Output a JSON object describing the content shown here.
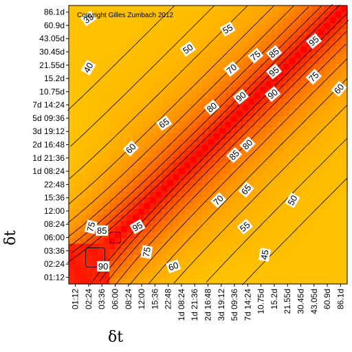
{
  "chart_data": {
    "type": "heatmap",
    "copyright": "Copyright Gilles Zumbach 2012",
    "xlabel": "δt",
    "ylabel": "δt",
    "tick_labels": [
      "01:12",
      "02:24",
      "03:36",
      "06:00",
      "08:24",
      "12:00",
      "15:36",
      "22:48",
      "1d 08:24",
      "1d 21:36",
      "2d 16:48",
      "3d 19:12",
      "5d 09:36",
      "7d 14:24",
      "10.75d",
      "15.2d",
      "21.55d",
      "30.45d",
      "43.05d",
      "60.9d",
      "86.1d"
    ],
    "contour_labels": [
      {
        "value": "35",
        "i": 1.0,
        "j": 19.5,
        "angle": -35
      },
      {
        "value": "55",
        "i": 11.5,
        "j": 18.7,
        "angle": -30
      },
      {
        "value": "50",
        "i": 8.5,
        "j": 17.2,
        "angle": -35
      },
      {
        "value": "40",
        "i": 1.0,
        "j": 15.8,
        "angle": -60
      },
      {
        "value": "75",
        "i": 13.6,
        "j": 16.7,
        "angle": -40
      },
      {
        "value": "85",
        "i": 15.0,
        "j": 16.9,
        "angle": -40
      },
      {
        "value": "95",
        "i": 18.0,
        "j": 17.8,
        "angle": -40
      },
      {
        "value": "70",
        "i": 11.8,
        "j": 15.7,
        "angle": -40
      },
      {
        "value": "95",
        "i": 15.0,
        "j": 15.5,
        "angle": -40
      },
      {
        "value": "75",
        "i": 18.0,
        "j": 15.1,
        "angle": -45
      },
      {
        "value": "60",
        "i": 19.9,
        "j": 14.2,
        "angle": -50
      },
      {
        "value": "90",
        "i": 12.5,
        "j": 13.6,
        "angle": -40
      },
      {
        "value": "90",
        "i": 14.9,
        "j": 13.8,
        "angle": -40
      },
      {
        "value": "80",
        "i": 10.3,
        "j": 12.8,
        "angle": -40
      },
      {
        "value": "65",
        "i": 6.7,
        "j": 11.6,
        "angle": -35
      },
      {
        "value": "60",
        "i": 4.2,
        "j": 9.7,
        "angle": -45
      },
      {
        "value": "85",
        "i": 12.0,
        "j": 9.2,
        "angle": -45
      },
      {
        "value": "80",
        "i": 13.0,
        "j": 10.0,
        "angle": -45
      },
      {
        "value": "70",
        "i": 10.8,
        "j": 5.8,
        "angle": -45
      },
      {
        "value": "65",
        "i": 12.9,
        "j": 6.6,
        "angle": -50
      },
      {
        "value": "50",
        "i": 16.4,
        "j": 5.8,
        "angle": -60
      },
      {
        "value": "55",
        "i": 12.8,
        "j": 3.8,
        "angle": -40
      },
      {
        "value": "75",
        "i": 1.2,
        "j": 3.8,
        "angle": -75
      },
      {
        "value": "85",
        "i": 2.0,
        "j": 3.5,
        "angle": 0
      },
      {
        "value": "95",
        "i": 4.7,
        "j": 3.8,
        "angle": -30
      },
      {
        "value": "75",
        "i": 5.4,
        "j": 1.9,
        "angle": -80
      },
      {
        "value": "45",
        "i": 14.3,
        "j": 1.7,
        "angle": -80
      },
      {
        "value": "90",
        "i": 2.1,
        "j": 0.8,
        "angle": 0
      },
      {
        "value": "60",
        "i": 7.4,
        "j": 0.8,
        "angle": -20
      }
    ]
  }
}
